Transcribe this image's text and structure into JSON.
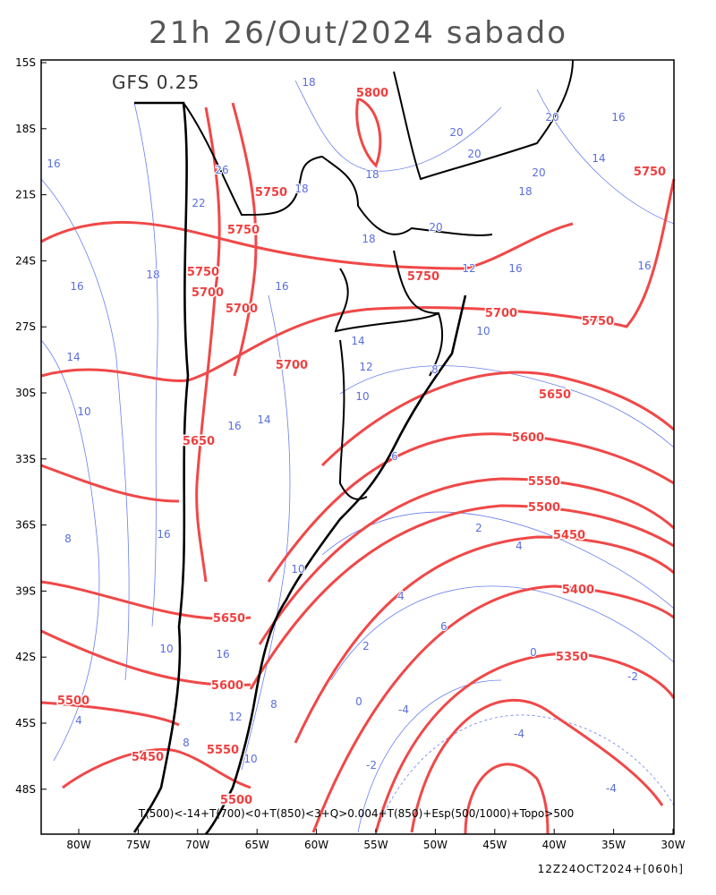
{
  "title": "21h 26/Out/2024 sabado",
  "model": "GFS 0.25",
  "lat_labels": [
    "15S",
    "18S",
    "21S",
    "24S",
    "27S",
    "30S",
    "33S",
    "36S",
    "39S",
    "42S",
    "45S",
    "48S"
  ],
  "lon_labels": [
    "80W",
    "75W",
    "70W",
    "65W",
    "60W",
    "55W",
    "50W",
    "45W",
    "40W",
    "35W",
    "30W"
  ],
  "legend": "T(500)<-14+T(700)<0+T(850)<3+Q>0.004+T(850)+Esp(500/1000)+Topo>500",
  "run_info": "12Z24OCT2024+[060h]",
  "thickness_labels": [
    "5800",
    "5750",
    "5750",
    "5750",
    "5750",
    "5700",
    "5700",
    "5750",
    "5700",
    "5750",
    "5700",
    "5650",
    "5600",
    "5650",
    "5550",
    "5500",
    "5450",
    "5400",
    "5650",
    "5350",
    "5600",
    "5500",
    "5550",
    "5450",
    "5500"
  ],
  "temperature_labels": [
    "18",
    "20",
    "20",
    "16",
    "16",
    "18",
    "26",
    "22",
    "18",
    "20",
    "20",
    "18",
    "14",
    "18",
    "20",
    "16",
    "16",
    "18",
    "16",
    "16",
    "12",
    "14",
    "14",
    "10",
    "12",
    "10",
    "10",
    "14",
    "16",
    "8",
    "6",
    "8",
    "16",
    "10",
    "2",
    "4",
    "4",
    "6",
    "10",
    "16",
    "2",
    "0",
    "-2",
    "4",
    "8",
    "0",
    "12",
    "-4",
    "-4",
    "8",
    "10",
    "-4",
    "-2"
  ]
}
